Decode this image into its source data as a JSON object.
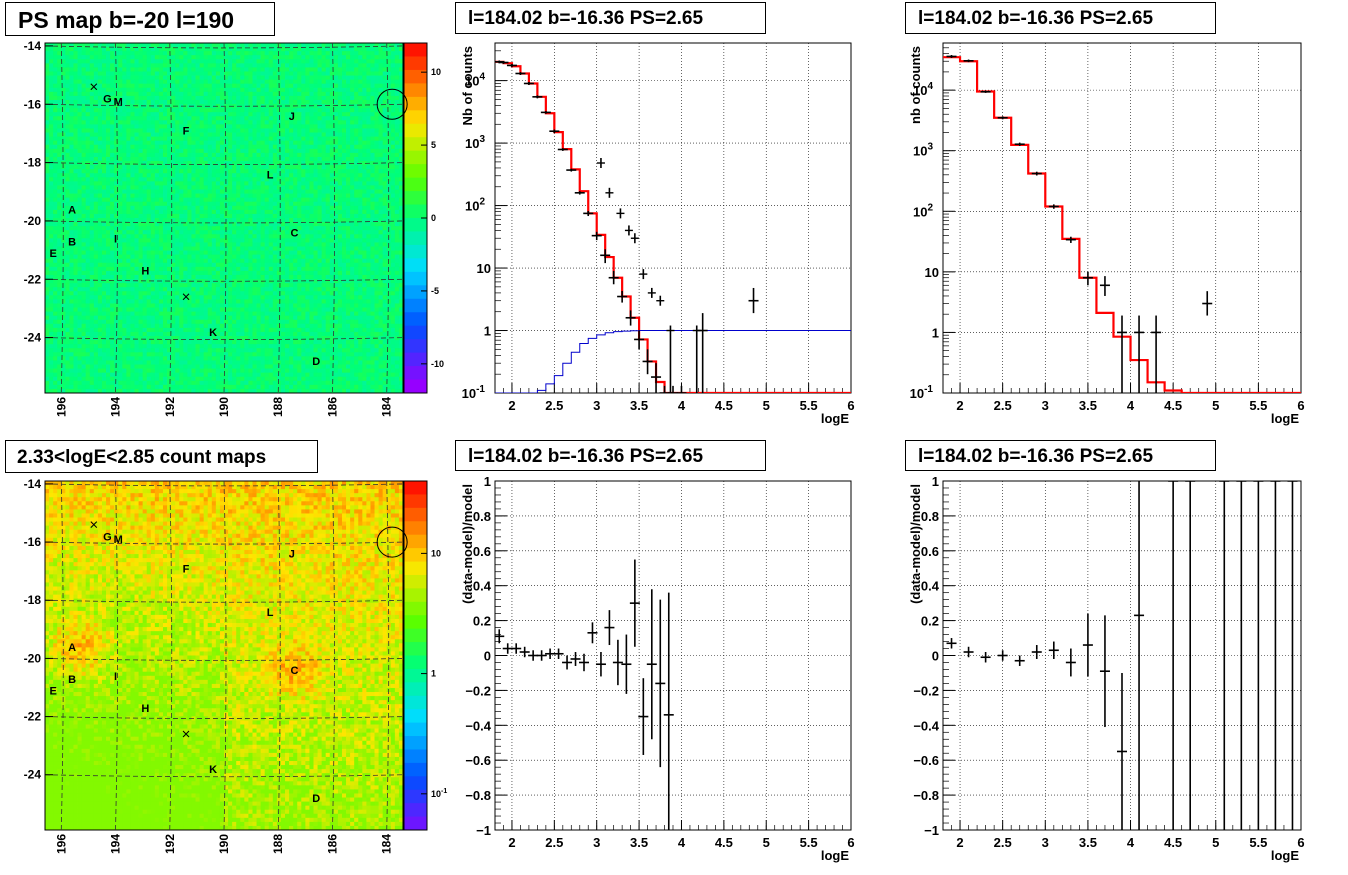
{
  "panel_titles": {
    "ps_map": "PS map b=-20 l=190",
    "count_map": "2.33<logE<2.85 count maps",
    "spectrum_left": "l=184.02 b=-16.36 PS=2.65",
    "spectrum_right": "l=184.02 b=-16.36 PS=2.65",
    "residual_left": "l=184.02 b=-16.36 PS=2.65",
    "residual_right": "l=184.02 b=-16.36 PS=2.65"
  },
  "chart_data": [
    {
      "id": "ps_map",
      "type": "heatmap",
      "title": "PS map b=-20 l=190",
      "xlim": [
        196.6,
        183.4
      ],
      "ylim": [
        -25.9,
        -13.9
      ],
      "xticks": [
        "196",
        "194",
        "192",
        "190",
        "188",
        "186",
        "184"
      ],
      "yticks": [
        "-14",
        "-16",
        "-18",
        "-20",
        "-22",
        "-24"
      ],
      "colorbar": {
        "scale": "linear",
        "range": [
          -12,
          12
        ],
        "ticks": [
          "10",
          "5",
          "0",
          "-5",
          "-10"
        ]
      },
      "grid": true,
      "sources": [
        {
          "label": "A",
          "l": 195.6,
          "b": -19.6
        },
        {
          "label": "B",
          "l": 195.6,
          "b": -20.7
        },
        {
          "label": "E",
          "l": 196.3,
          "b": -21.1
        },
        {
          "label": "G",
          "l": 194.3,
          "b": -15.8
        },
        {
          "label": "M",
          "l": 193.9,
          "b": -15.9
        },
        {
          "label": "F",
          "l": 191.4,
          "b": -16.9
        },
        {
          "label": "I",
          "l": 194.0,
          "b": -20.6
        },
        {
          "label": "H",
          "l": 192.9,
          "b": -21.7
        },
        {
          "label": "J",
          "l": 187.5,
          "b": -16.4
        },
        {
          "label": "L",
          "l": 188.3,
          "b": -18.4
        },
        {
          "label": "C",
          "l": 187.4,
          "b": -20.4
        },
        {
          "label": "K",
          "l": 190.4,
          "b": -23.8
        },
        {
          "label": "D",
          "l": 186.6,
          "b": -24.8
        }
      ],
      "cross_marks": [
        {
          "l": 194.8,
          "b": -15.4
        },
        {
          "l": 191.4,
          "b": -22.6
        }
      ],
      "circle": {
        "l": 183.8,
        "b": -16.0
      }
    },
    {
      "id": "count_map",
      "type": "heatmap",
      "title": "2.33<logE<2.85 count maps",
      "xlim": [
        196.6,
        183.4
      ],
      "ylim": [
        -25.9,
        -13.9
      ],
      "xticks": [
        "196",
        "194",
        "192",
        "190",
        "188",
        "186",
        "184"
      ],
      "yticks": [
        "-14",
        "-16",
        "-18",
        "-20",
        "-22",
        "-24"
      ],
      "colorbar": {
        "scale": "log",
        "range": [
          0.05,
          40
        ],
        "ticks": [
          "10",
          "1",
          "10"
        ],
        "tick_exponents": [
          "",
          "",
          "-1"
        ]
      },
      "grid": true
    },
    {
      "id": "spectrum_left",
      "type": "line",
      "title": "l=184.02 b=-16.36 PS=2.65",
      "xlabel": "logE",
      "ylabel": "Nb of counts",
      "xlim": [
        1.8,
        6.0
      ],
      "ylim": [
        0.1,
        40000
      ],
      "yscale": "log",
      "xticks": [
        "2",
        "2.5",
        "3",
        "3.5",
        "4",
        "4.5",
        "5",
        "5.5",
        "6"
      ],
      "yticks": [
        "10",
        "1",
        "10",
        "10",
        "10",
        "10",
        "1",
        "10"
      ],
      "ytick_exponents": [
        "-1",
        "",
        "",
        "2",
        "3",
        "4",
        "",
        ""
      ],
      "grid": true,
      "series": [
        {
          "style": "step-red",
          "edges": [
            1.8,
            1.9,
            2.0,
            2.1,
            2.2,
            2.3,
            2.4,
            2.5,
            2.6,
            2.7,
            2.8,
            2.9,
            3.0,
            3.1,
            3.2,
            3.3,
            3.4,
            3.5,
            3.6,
            3.7,
            3.8,
            3.9,
            4.0,
            4.1,
            4.2,
            4.3,
            6.0
          ],
          "values": [
            20000,
            19000,
            17000,
            13000,
            9000,
            5500,
            3000,
            1500,
            800,
            380,
            170,
            75,
            34,
            15,
            7,
            3.5,
            1.6,
            0.72,
            0.32,
            0.15,
            0.1,
            0.1,
            0.1,
            0.1,
            0.1,
            0.1
          ]
        },
        {
          "style": "step-blue",
          "edges": [
            1.8,
            2.3,
            2.4,
            2.5,
            2.6,
            2.7,
            2.8,
            2.9,
            3.0,
            3.1,
            3.2,
            3.3,
            3.4,
            3.5,
            6.0
          ],
          "values": [
            0.1,
            0.11,
            0.14,
            0.19,
            0.3,
            0.45,
            0.62,
            0.75,
            0.85,
            0.92,
            0.96,
            0.98,
            0.99,
            1.0
          ]
        },
        {
          "style": "points-black",
          "x": [
            1.85,
            1.9,
            2.0,
            2.1,
            2.2,
            2.3,
            2.4,
            2.5,
            2.6,
            2.7,
            2.8,
            2.9,
            3.0,
            3.1,
            3.2,
            3.3,
            3.4,
            3.5,
            3.6,
            3.7,
            3.8,
            3.9,
            4.0,
            4.25,
            4.85
          ],
          "y": [
            20000,
            19500,
            17500,
            13000,
            9000,
            5500,
            3100,
            1550,
            790,
            370,
            160,
            75,
            33,
            16,
            7,
            3.5,
            1.6,
            0.72,
            0.32,
            0.18,
            0.1,
            0.1,
            0.1,
            1,
            3
          ],
          "ylo": [
            19000,
            18500,
            16500,
            12300,
            8500,
            5200,
            2950,
            1450,
            750,
            350,
            150,
            68,
            28,
            12,
            5.5,
            2.8,
            1.2,
            0.5,
            0.2,
            0.1,
            0.1,
            0.1,
            0.1,
            0.1,
            1.9
          ],
          "yhi": [
            21000,
            20500,
            18500,
            13700,
            9500,
            5800,
            3250,
            1650,
            830,
            390,
            170,
            82,
            38,
            20,
            9,
            4.3,
            2.1,
            1,
            0.5,
            0.3,
            0.13,
            0.13,
            0.13,
            1.9,
            4.8
          ]
        }
      ],
      "markers": [
        {
          "x": 3.05,
          "y": 480
        },
        {
          "x": 3.15,
          "y": 160
        },
        {
          "x": 3.28,
          "y": 75
        },
        {
          "x": 3.38,
          "y": 40
        },
        {
          "x": 3.45,
          "y": 30
        },
        {
          "x": 3.55,
          "y": 8
        },
        {
          "x": 3.65,
          "y": 4
        },
        {
          "x": 3.75,
          "y": 3
        },
        {
          "x": 3.87,
          "y": 1
        },
        {
          "x": 4.18,
          "y": 1
        }
      ]
    },
    {
      "id": "spectrum_right",
      "type": "line",
      "title": "l=184.02 b=-16.36 PS=2.65",
      "xlabel": "logE",
      "ylabel": "nb of counts",
      "xlim": [
        1.8,
        6.0
      ],
      "ylim": [
        0.1,
        60000
      ],
      "yscale": "log",
      "xticks": [
        "2",
        "2.5",
        "3",
        "3.5",
        "4",
        "4.5",
        "5",
        "5.5",
        "6"
      ],
      "yticks": [
        "10",
        "1",
        "10",
        "10",
        "10",
        "10",
        "1",
        "10"
      ],
      "ytick_exponents": [
        "-1",
        "",
        "",
        "2",
        "3",
        "4",
        "",
        ""
      ],
      "grid": true,
      "series": [
        {
          "style": "step-red",
          "edges": [
            1.8,
            2.0,
            2.2,
            2.4,
            2.6,
            2.8,
            3.0,
            3.2,
            3.4,
            3.6,
            3.8,
            4.0,
            4.2,
            4.4,
            4.6,
            4.8,
            6.0
          ],
          "values": [
            35000,
            30000,
            9500,
            3500,
            1250,
            420,
            120,
            35,
            8,
            2.1,
            0.85,
            0.35,
            0.15,
            0.11,
            0.1,
            0.1
          ]
        },
        {
          "style": "points-black",
          "x": [
            1.9,
            2.1,
            2.3,
            2.5,
            2.7,
            2.9,
            3.1,
            3.3,
            3.5,
            3.7,
            3.9,
            4.1,
            4.3,
            4.9
          ],
          "y": [
            36000,
            30500,
            9400,
            3500,
            1280,
            420,
            120,
            34,
            8,
            6,
            1,
            1,
            1,
            3
          ],
          "ylo": [
            34000,
            29000,
            9000,
            3300,
            1200,
            390,
            110,
            30,
            6,
            4,
            0.1,
            0.1,
            0.1,
            1.9
          ],
          "yhi": [
            38000,
            32000,
            9800,
            3700,
            1360,
            450,
            130,
            38,
            10,
            8.5,
            1.9,
            1.9,
            1.9,
            4.8
          ]
        }
      ]
    },
    {
      "id": "residual_left",
      "type": "scatter",
      "title": "l=184.02 b=-16.36 PS=2.65",
      "xlabel": "logE",
      "ylabel": "(data-model)/model",
      "xlim": [
        1.8,
        6.0
      ],
      "ylim": [
        -1,
        1
      ],
      "xticks": [
        "2",
        "2.5",
        "3",
        "3.5",
        "4",
        "4.5",
        "5",
        "5.5",
        "6"
      ],
      "yticks": [
        "1",
        "0.8",
        "0.6",
        "0.4",
        "0.2",
        "0",
        "−0.2",
        "−0.4",
        "−0.6",
        "−0.8",
        "−1"
      ],
      "grid": true,
      "points": {
        "x": [
          1.85,
          1.95,
          2.05,
          2.15,
          2.25,
          2.35,
          2.45,
          2.55,
          2.65,
          2.75,
          2.85,
          2.95,
          3.05,
          3.15,
          3.25,
          3.35,
          3.45,
          3.55,
          3.65,
          3.75,
          3.85
        ],
        "y": [
          0.11,
          0.04,
          0.04,
          0.02,
          0.0,
          0.0,
          0.01,
          0.01,
          -0.04,
          -0.02,
          -0.04,
          0.13,
          -0.05,
          0.16,
          -0.04,
          -0.05,
          0.3,
          -0.35,
          -0.05,
          -0.16,
          -0.34
        ],
        "err": [
          0.04,
          0.03,
          0.03,
          0.03,
          0.03,
          0.03,
          0.03,
          0.03,
          0.04,
          0.04,
          0.05,
          0.06,
          0.07,
          0.1,
          0.13,
          0.17,
          0.25,
          0.22,
          0.43,
          0.48,
          0.7
        ]
      }
    },
    {
      "id": "residual_right",
      "type": "scatter",
      "title": "l=184.02 b=-16.36 PS=2.65",
      "xlabel": "logE",
      "ylabel": "(data-model)/model",
      "xlim": [
        1.8,
        6.0
      ],
      "ylim": [
        -1,
        1
      ],
      "xticks": [
        "2",
        "2.5",
        "3",
        "3.5",
        "4",
        "4.5",
        "5",
        "5.5",
        "6"
      ],
      "yticks": [
        "1",
        "0.8",
        "0.6",
        "0.4",
        "0.2",
        "0",
        "−0.2",
        "−0.4",
        "−0.6",
        "−0.8",
        "−1"
      ],
      "grid": true,
      "points": {
        "x": [
          1.9,
          2.1,
          2.3,
          2.5,
          2.7,
          2.9,
          3.1,
          3.3,
          3.5,
          3.7,
          3.9,
          4.1,
          4.5,
          4.7,
          5.1,
          5.3,
          5.5,
          5.7,
          5.9
        ],
        "y": [
          0.07,
          0.02,
          -0.01,
          0.0,
          -0.03,
          0.02,
          0.03,
          -0.04,
          0.06,
          -0.09,
          -0.55,
          0.23,
          1.0,
          1.0,
          1.0,
          1.0,
          1.0,
          1.0,
          1.0
        ],
        "err": [
          0.03,
          0.03,
          0.03,
          0.03,
          0.03,
          0.04,
          0.05,
          0.08,
          0.18,
          0.32,
          0.45,
          1.3,
          2.0,
          2.0,
          2.0,
          2.0,
          2.0,
          2.0,
          2.0
        ]
      }
    }
  ]
}
